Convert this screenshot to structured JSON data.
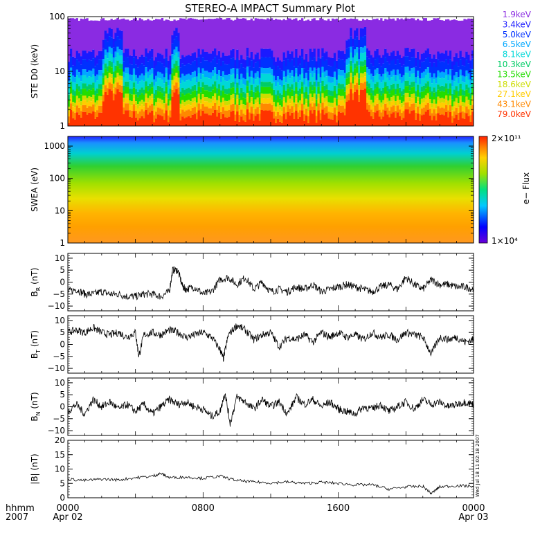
{
  "title": "STEREO-A IMPACT Summary Plot",
  "time_axis": {
    "label_line1": "hhmm",
    "label_line2": "2007",
    "ticks": [
      {
        "hour": 0,
        "label": "0000",
        "sub": "Apr 02"
      },
      {
        "hour": 8,
        "label": "0800",
        "sub": ""
      },
      {
        "hour": 16,
        "label": "1600",
        "sub": ""
      },
      {
        "hour": 24,
        "label": "0000",
        "sub": "Apr 03"
      }
    ]
  },
  "side_stamp": "Wed Jul 18 11:02:18 2007",
  "colorbar": {
    "max_label": "2×10¹¹",
    "min_label": "1×10⁴",
    "label": "e− Flux"
  },
  "chart_data": [
    {
      "type": "area",
      "name": "ste",
      "ylabel": "STE D0 (keV)",
      "yscale": "log",
      "ylim": [
        1,
        100
      ],
      "yticks": [
        {
          "v": 1,
          "label": "1"
        },
        {
          "v": 10,
          "label": "10"
        },
        {
          "v": 100,
          "label": "100"
        }
      ],
      "series": [
        {
          "name": "1.9keV",
          "color": "#8a2be2",
          "typical_level": 90
        },
        {
          "name": "3.4keV",
          "color": "#1a1aff",
          "typical_level": 20
        },
        {
          "name": "5.0keV",
          "color": "#0030ff",
          "typical_level": 14
        },
        {
          "name": "6.5keV",
          "color": "#00a8ff",
          "typical_level": 9
        },
        {
          "name": "8.1keV",
          "color": "#00d8d8",
          "typical_level": 7
        },
        {
          "name": "10.3keV",
          "color": "#00cc66",
          "typical_level": 5
        },
        {
          "name": "13.5keV",
          "color": "#22dd00",
          "typical_level": 4
        },
        {
          "name": "18.6keV",
          "color": "#ccdd00",
          "typical_level": 3
        },
        {
          "name": "27.1keV",
          "color": "#ffcc00",
          "typical_level": 2.5
        },
        {
          "name": "43.1keV",
          "color": "#ff8800",
          "typical_level": 2
        },
        {
          "name": "79.0keV",
          "color": "#ff3300",
          "typical_level": 1.5
        }
      ]
    },
    {
      "type": "heatmap",
      "name": "swea",
      "ylabel": "SWEA (eV)",
      "yscale": "log",
      "ylim": [
        1,
        2000
      ],
      "yticks": [
        {
          "v": 1,
          "label": "1"
        },
        {
          "v": 10,
          "label": "10"
        },
        {
          "v": 100,
          "label": "100"
        },
        {
          "v": 1000,
          "label": "1000"
        }
      ],
      "zlim": [
        10000,
        200000000000
      ],
      "zscale": "log"
    },
    {
      "type": "line",
      "name": "br",
      "ylabel": "B",
      "ylabel_sub": "R",
      "ylabel_unit": "(nT)",
      "ylim": [
        -12,
        12
      ],
      "yticks": [
        {
          "v": -10,
          "label": "−10"
        },
        {
          "v": -5,
          "label": "−5"
        },
        {
          "v": 0,
          "label": "0"
        },
        {
          "v": 5,
          "label": "5"
        },
        {
          "v": 10,
          "label": "10"
        }
      ],
      "x_hours": [
        0,
        0.5,
        1,
        1.5,
        2,
        2.5,
        3,
        3.5,
        4,
        4.5,
        5,
        5.5,
        6,
        6.2,
        6.5,
        6.8,
        7,
        7.5,
        8,
        8.5,
        9,
        9.5,
        10,
        10.5,
        11,
        11.5,
        12,
        12.5,
        13,
        13.5,
        14,
        14.5,
        15,
        15.5,
        16,
        16.5,
        17,
        17.5,
        18,
        18.5,
        19,
        19.5,
        20,
        20.5,
        21,
        21.5,
        22,
        22.5,
        23,
        23.5,
        24
      ],
      "values": [
        -4,
        -3,
        -5,
        -5,
        -4,
        -5,
        -5,
        -6,
        -6,
        -5,
        -5,
        -6,
        -4,
        5,
        5,
        -2,
        -3,
        -2,
        -5,
        -4,
        1,
        2,
        -1,
        2,
        -3,
        0,
        -4,
        -3,
        -4,
        -2,
        -3,
        -1,
        -4,
        -3,
        -2,
        -1,
        -2,
        -3,
        -4,
        -2,
        -1,
        -3,
        2,
        -1,
        -3,
        1,
        -1,
        -1,
        -2,
        -2,
        -3
      ]
    },
    {
      "type": "line",
      "name": "bt",
      "ylabel": "B",
      "ylabel_sub": "T",
      "ylabel_unit": "(nT)",
      "ylim": [
        -12,
        12
      ],
      "yticks": [
        {
          "v": -10,
          "label": "−10"
        },
        {
          "v": -5,
          "label": "−5"
        },
        {
          "v": 0,
          "label": "0"
        },
        {
          "v": 5,
          "label": "5"
        },
        {
          "v": 10,
          "label": "10"
        }
      ],
      "x_hours": [
        0,
        0.5,
        1,
        1.5,
        2,
        2.5,
        3,
        3.5,
        4,
        4.2,
        4.5,
        5,
        5.5,
        6,
        6.5,
        7,
        7.5,
        8,
        8.5,
        9,
        9.2,
        9.5,
        10,
        10.5,
        11,
        11.5,
        12,
        12.5,
        13,
        13.5,
        14,
        14.5,
        15,
        15.5,
        16,
        16.5,
        17,
        17.5,
        18,
        18.5,
        19,
        19.5,
        20,
        20.5,
        21,
        21.5,
        22,
        22.5,
        23,
        23.5,
        24
      ],
      "values": [
        5,
        6,
        5,
        7,
        5,
        4,
        5,
        3,
        5,
        -5,
        4,
        5,
        4,
        6,
        5,
        3,
        4,
        5,
        3,
        -2,
        -6,
        4,
        8,
        6,
        2,
        4,
        5,
        -1,
        3,
        2,
        4,
        1,
        5,
        3,
        5,
        3,
        4,
        2,
        5,
        3,
        4,
        2,
        5,
        4,
        3,
        -4,
        3,
        2,
        3,
        1,
        2
      ]
    },
    {
      "type": "line",
      "name": "bn",
      "ylabel": "B",
      "ylabel_sub": "N",
      "ylabel_unit": "(nT)",
      "ylim": [
        -12,
        12
      ],
      "yticks": [
        {
          "v": -10,
          "label": "−10"
        },
        {
          "v": -5,
          "label": "−5"
        },
        {
          "v": 0,
          "label": "0"
        },
        {
          "v": 5,
          "label": "5"
        },
        {
          "v": 10,
          "label": "10"
        }
      ],
      "x_hours": [
        0,
        0.5,
        1,
        1.5,
        2,
        2.5,
        3,
        3.5,
        4,
        4.5,
        5,
        5.5,
        6,
        6.5,
        7,
        7.5,
        8,
        8.5,
        9,
        9.3,
        9.6,
        10,
        10.5,
        11,
        11.5,
        12,
        12.5,
        13,
        13.5,
        14,
        14.5,
        15,
        15.5,
        16,
        16.5,
        17,
        17.5,
        18,
        18.5,
        19,
        19.5,
        20,
        20.5,
        21,
        21.5,
        22,
        22.5,
        23,
        23.5,
        24
      ],
      "values": [
        -2,
        1,
        -3,
        3,
        0,
        2,
        -1,
        1,
        -2,
        1,
        -3,
        0,
        3,
        1,
        2,
        0,
        -1,
        -4,
        -2,
        6,
        -7,
        4,
        2,
        -1,
        3,
        0,
        2,
        -3,
        4,
        1,
        3,
        0,
        2,
        -1,
        -2,
        -3,
        0,
        -1,
        1,
        -2,
        0,
        2,
        -1,
        3,
        1,
        2,
        0,
        1,
        2,
        1
      ]
    },
    {
      "type": "line",
      "name": "bmag",
      "ylabel": "|B| (nT)",
      "ylim": [
        0,
        20
      ],
      "yticks": [
        {
          "v": 0,
          "label": "0"
        },
        {
          "v": 5,
          "label": "5"
        },
        {
          "v": 10,
          "label": "10"
        },
        {
          "v": 15,
          "label": "15"
        },
        {
          "v": 20,
          "label": "20"
        }
      ],
      "x_hours": [
        0,
        1,
        2,
        3,
        4,
        5,
        5.5,
        6,
        7,
        8,
        9,
        10,
        11,
        12,
        13,
        14,
        15,
        16,
        17,
        18,
        19,
        20,
        21,
        21.5,
        22,
        23,
        24
      ],
      "values": [
        6.5,
        6,
        6.5,
        6.2,
        7,
        7.5,
        8.5,
        7,
        7.2,
        6.8,
        7.5,
        6,
        5.5,
        5.2,
        5.5,
        5,
        5.4,
        5,
        4.5,
        4.5,
        3,
        3.8,
        4,
        1.5,
        3.8,
        4.2,
        4
      ]
    }
  ]
}
